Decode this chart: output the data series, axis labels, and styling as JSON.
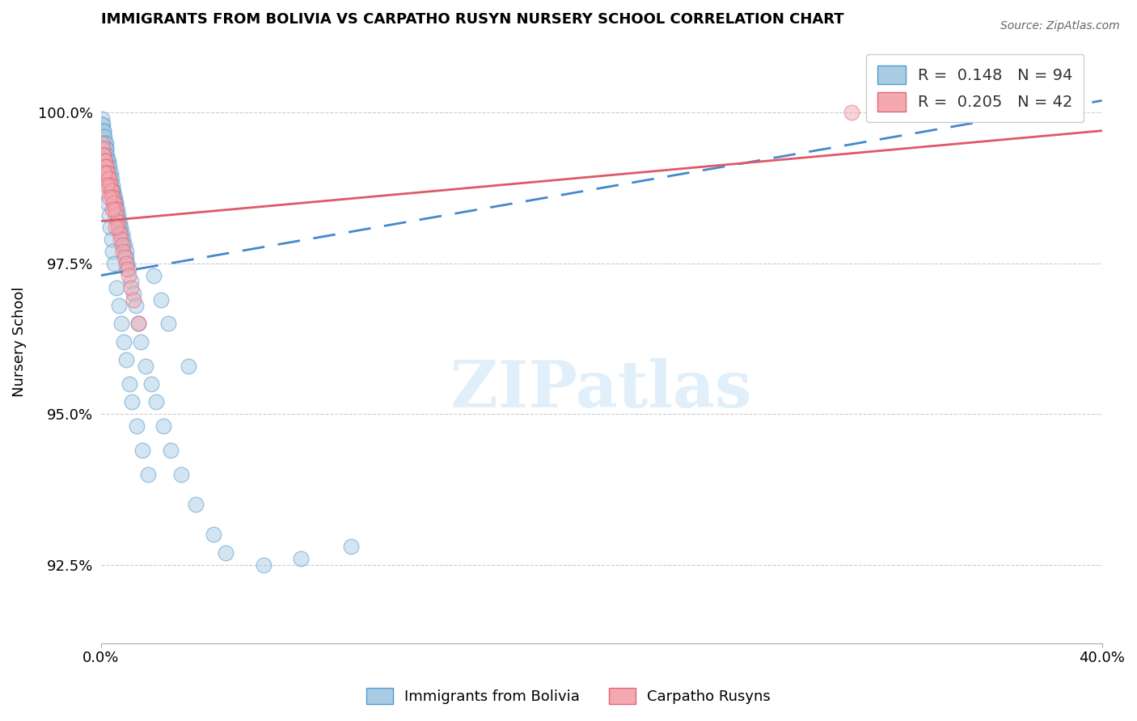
{
  "title": "IMMIGRANTS FROM BOLIVIA VS CARPATHO RUSYN NURSERY SCHOOL CORRELATION CHART",
  "source": "Source: ZipAtlas.com",
  "ylabel": "Nursery School",
  "yticks": [
    92.5,
    95.0,
    97.5,
    100.0
  ],
  "ytick_labels": [
    "92.5%",
    "95.0%",
    "97.5%",
    "100.0%"
  ],
  "xmin": 0.0,
  "xmax": 40.0,
  "ymin": 91.2,
  "ymax": 101.2,
  "legend_r1": "R =  0.148",
  "legend_n1": "N = 94",
  "legend_r2": "R =  0.205",
  "legend_n2": "N = 42",
  "blue_color": "#a8cce4",
  "pink_color": "#f4a8b0",
  "blue_edge": "#5599cc",
  "pink_edge": "#e06878",
  "trend_blue": "#4488cc",
  "trend_pink": "#e05868",
  "background": "#ffffff",
  "bolivia_x": [
    0.05,
    0.05,
    0.08,
    0.1,
    0.1,
    0.12,
    0.12,
    0.15,
    0.15,
    0.18,
    0.2,
    0.2,
    0.2,
    0.22,
    0.25,
    0.25,
    0.28,
    0.3,
    0.3,
    0.3,
    0.35,
    0.35,
    0.38,
    0.4,
    0.4,
    0.42,
    0.45,
    0.45,
    0.48,
    0.5,
    0.5,
    0.52,
    0.55,
    0.55,
    0.58,
    0.6,
    0.6,
    0.65,
    0.65,
    0.7,
    0.7,
    0.75,
    0.75,
    0.8,
    0.8,
    0.85,
    0.9,
    0.9,
    0.95,
    1.0,
    1.0,
    1.05,
    1.1,
    1.2,
    1.3,
    1.4,
    1.5,
    1.6,
    1.8,
    2.0,
    2.2,
    2.5,
    2.8,
    3.2,
    3.8,
    4.5,
    5.0,
    6.5,
    8.0,
    10.0,
    0.08,
    0.12,
    0.18,
    0.22,
    0.28,
    0.32,
    0.38,
    0.42,
    0.48,
    0.52,
    0.62,
    0.72,
    0.82,
    0.92,
    1.02,
    1.15,
    1.25,
    1.45,
    1.65,
    1.9,
    2.1,
    2.4,
    2.7,
    3.5
  ],
  "bolivia_y": [
    99.9,
    99.8,
    99.8,
    99.7,
    99.6,
    99.7,
    99.5,
    99.6,
    99.4,
    99.5,
    99.5,
    99.4,
    99.3,
    99.4,
    99.3,
    99.2,
    99.2,
    99.2,
    99.1,
    99.0,
    99.1,
    99.0,
    98.9,
    99.0,
    98.8,
    98.9,
    98.8,
    98.7,
    98.7,
    98.7,
    98.6,
    98.6,
    98.5,
    98.6,
    98.5,
    98.5,
    98.4,
    98.3,
    98.4,
    98.3,
    98.2,
    98.2,
    98.1,
    98.1,
    98.0,
    98.0,
    97.9,
    97.8,
    97.8,
    97.7,
    97.6,
    97.5,
    97.4,
    97.2,
    97.0,
    96.8,
    96.5,
    96.2,
    95.8,
    95.5,
    95.2,
    94.8,
    94.4,
    94.0,
    93.5,
    93.0,
    92.7,
    92.5,
    92.6,
    92.8,
    99.3,
    99.1,
    98.9,
    98.7,
    98.5,
    98.3,
    98.1,
    97.9,
    97.7,
    97.5,
    97.1,
    96.8,
    96.5,
    96.2,
    95.9,
    95.5,
    95.2,
    94.8,
    94.4,
    94.0,
    97.3,
    96.9,
    96.5,
    95.8
  ],
  "rusyn_x": [
    0.05,
    0.08,
    0.1,
    0.12,
    0.15,
    0.18,
    0.2,
    0.22,
    0.25,
    0.28,
    0.3,
    0.32,
    0.35,
    0.38,
    0.4,
    0.42,
    0.45,
    0.48,
    0.5,
    0.52,
    0.55,
    0.58,
    0.6,
    0.65,
    0.7,
    0.75,
    0.8,
    0.85,
    0.9,
    0.95,
    1.0,
    1.05,
    1.1,
    1.2,
    1.3,
    1.5,
    0.15,
    0.25,
    0.35,
    0.45,
    0.6,
    30.0
  ],
  "rusyn_y": [
    99.5,
    99.4,
    99.3,
    99.3,
    99.2,
    99.2,
    99.1,
    99.1,
    99.0,
    99.0,
    98.9,
    98.9,
    98.8,
    98.8,
    98.7,
    98.7,
    98.6,
    98.6,
    98.5,
    98.5,
    98.4,
    98.4,
    98.3,
    98.2,
    98.1,
    98.0,
    97.9,
    97.8,
    97.7,
    97.6,
    97.5,
    97.4,
    97.3,
    97.1,
    96.9,
    96.5,
    99.0,
    98.8,
    98.6,
    98.4,
    98.1,
    100.0
  ],
  "bolivia_trend_x": [
    0.0,
    40.0
  ],
  "bolivia_trend_y": [
    97.3,
    100.2
  ],
  "rusyn_trend_x": [
    0.0,
    40.0
  ],
  "rusyn_trend_y": [
    98.2,
    99.7
  ]
}
